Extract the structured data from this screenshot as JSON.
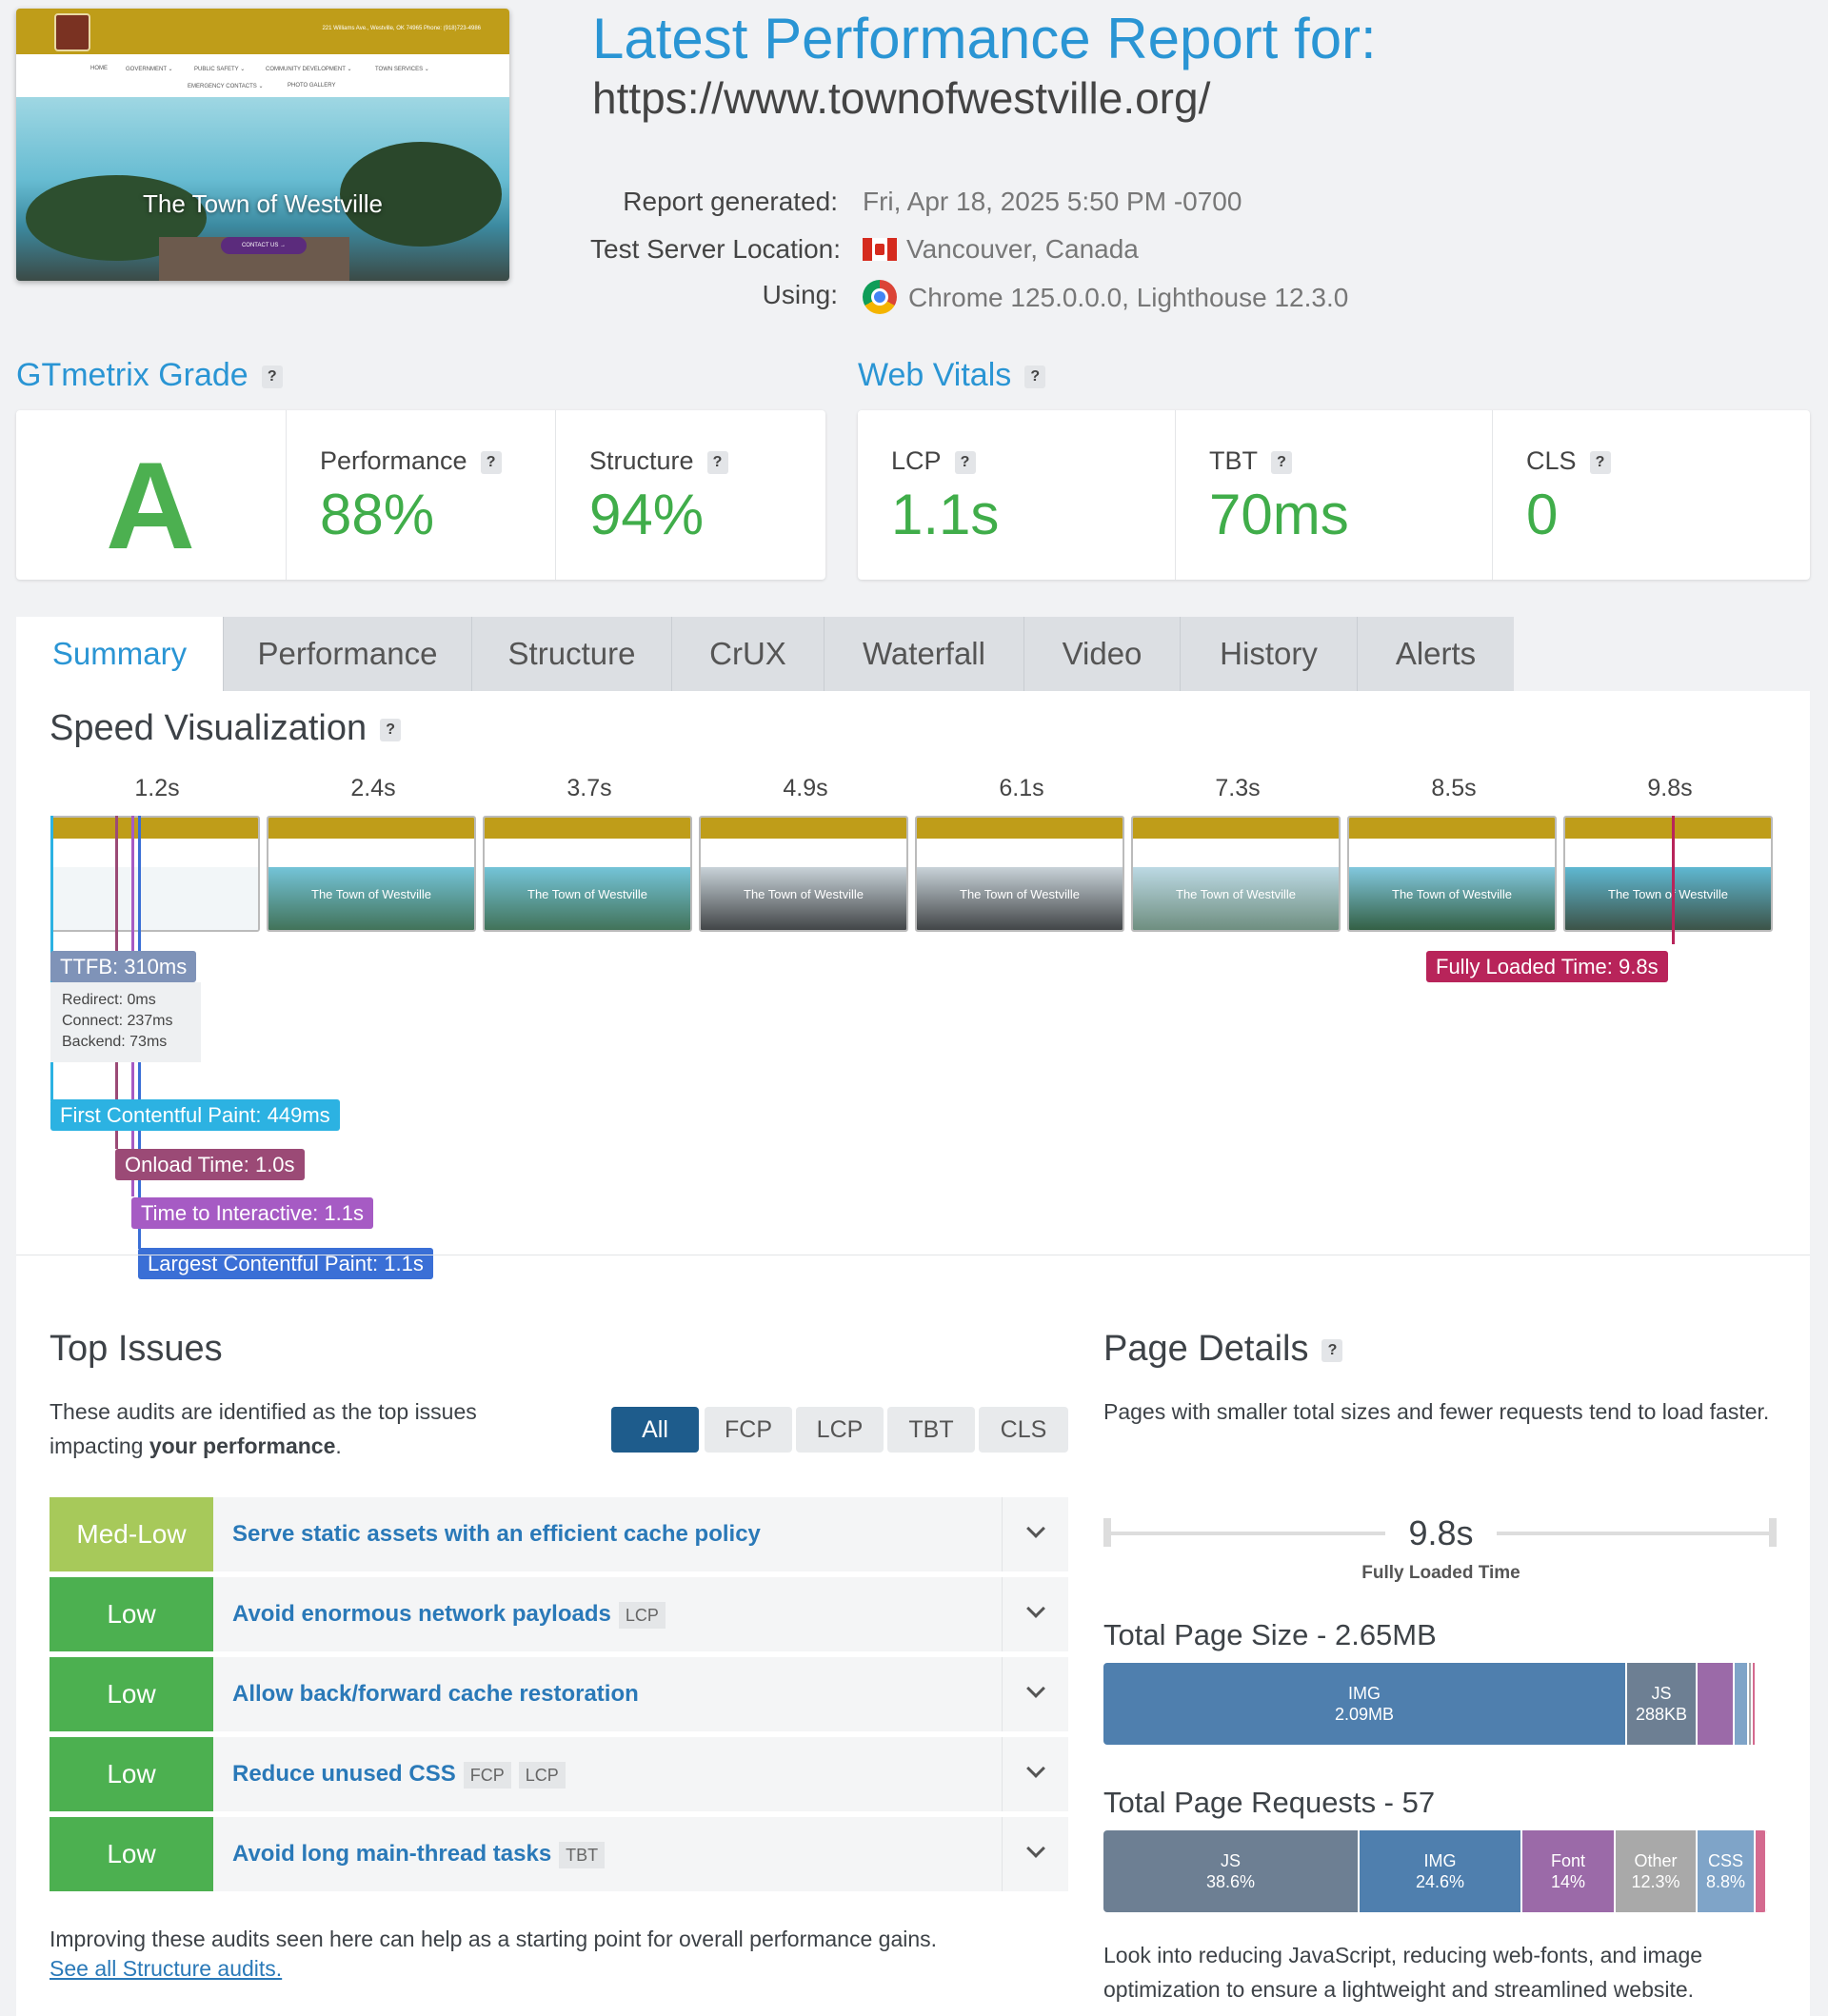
{
  "thumbnail": {
    "logo_text": "WESTVILLE",
    "address": "221 Williams Ave., Westville, OK 74965    Phone: (918)723-4986",
    "nav": [
      "HOME",
      "GOVERNMENT ⌄",
      "PUBLIC SAFETY ⌄",
      "COMMUNITY DEVELOPMENT ⌄",
      "TOWN SERVICES ⌄",
      "EMERGENCY CONTACTS ⌄",
      "PHOTO GALLERY"
    ],
    "hero_title": "The Town of Westville",
    "hero_button": "CONTACT US →"
  },
  "header": {
    "title": "Latest Performance Report for:",
    "url": "https://www.townofwestville.org/",
    "report_generated_label": "Report generated:",
    "report_generated_value": "Fri, Apr 18, 2025 5:50 PM -0700",
    "location_label": "Test Server Location:",
    "location_value": "Vancouver, Canada",
    "using_label": "Using:",
    "using_value": "Chrome 125.0.0.0, Lighthouse 12.3.0",
    "location_icon": "canada-flag-icon",
    "browser_icon": "chrome-icon"
  },
  "grade": {
    "title": "GTmetrix Grade",
    "letter": "A",
    "performance_label": "Performance",
    "performance_value": "88%",
    "structure_label": "Structure",
    "structure_value": "94%"
  },
  "vitals": {
    "title": "Web Vitals",
    "lcp_label": "LCP",
    "lcp_value": "1.1s",
    "tbt_label": "TBT",
    "tbt_value": "70ms",
    "cls_label": "CLS",
    "cls_value": "0"
  },
  "help_mark": "?",
  "tabs": [
    "Summary",
    "Performance",
    "Structure",
    "CrUX",
    "Waterfall",
    "Video",
    "History",
    "Alerts"
  ],
  "speed": {
    "title": "Speed Visualization",
    "ticks": [
      "1.2s",
      "2.4s",
      "3.7s",
      "4.9s",
      "6.1s",
      "7.3s",
      "8.5s",
      "9.8s"
    ],
    "frame_caption": "The Town of Westville",
    "ttfb": "TTFB: 310ms",
    "redirect": "Redirect: 0ms",
    "connect": "Connect: 237ms",
    "backend": "Backend: 73ms",
    "fcp": "First Contentful Paint: 449ms",
    "onload": "Onload Time: 1.0s",
    "tti": "Time to Interactive: 1.1s",
    "lcp": "Largest Contentful Paint: 1.1s",
    "fully_loaded": "Fully Loaded Time: 9.8s",
    "colors": {
      "ttfb": "#7f93b8",
      "fcp": "#2cb2e2",
      "onload": "#9b4a76",
      "tti": "#a65bc4",
      "lcp": "#3a6fd6",
      "fully": "#b8245a"
    }
  },
  "issues": {
    "title": "Top Issues",
    "desc_prefix": "These audits are identified as the top issues impacting ",
    "desc_bold": "your performance",
    "desc_suffix": ".",
    "filters": [
      "All",
      "FCP",
      "LCP",
      "TBT",
      "CLS"
    ],
    "items": [
      {
        "severity": "Med-Low",
        "title": "Serve static assets with an efficient cache policy",
        "tags": []
      },
      {
        "severity": "Low",
        "title": "Avoid enormous network payloads",
        "tags": [
          "LCP"
        ]
      },
      {
        "severity": "Low",
        "title": "Allow back/forward cache restoration",
        "tags": []
      },
      {
        "severity": "Low",
        "title": "Reduce unused CSS",
        "tags": [
          "FCP",
          "LCP"
        ]
      },
      {
        "severity": "Low",
        "title": "Avoid long main-thread tasks",
        "tags": [
          "TBT"
        ]
      }
    ],
    "footer": "Improving these audits seen here can help as a starting point for overall performance gains.",
    "link": "See all Structure audits."
  },
  "details": {
    "title": "Page Details",
    "desc": "Pages with smaller total sizes and fewer requests tend to load faster.",
    "fully_loaded_value": "9.8s",
    "fully_loaded_label": "Fully Loaded Time",
    "size_title": "Total Page Size - 2.65MB",
    "size_segments": [
      {
        "label": "IMG",
        "value": "2.09MB",
        "share": 0.789,
        "color": "#4f7fae"
      },
      {
        "label": "JS",
        "value": "288KB",
        "share": 0.106,
        "color": "#6d7f93"
      },
      {
        "label": "",
        "value": "",
        "share": 0.056,
        "color": "#9b6aa8"
      },
      {
        "label": "",
        "value": "",
        "share": 0.022,
        "color": "#7fa4c8"
      },
      {
        "label": "",
        "value": "",
        "share": 0.006,
        "color": "#a9a9a9"
      },
      {
        "label": "",
        "value": "",
        "share": 0.006,
        "color": "#d46a8f"
      }
    ],
    "requests_title": "Total Page Requests - 57",
    "request_segments": [
      {
        "label": "JS",
        "value": "38.6%",
        "share": 0.386,
        "color": "#6d7f93"
      },
      {
        "label": "IMG",
        "value": "24.6%",
        "share": 0.246,
        "color": "#4f7fae"
      },
      {
        "label": "Font",
        "value": "14%",
        "share": 0.14,
        "color": "#9b6aa8"
      },
      {
        "label": "Other",
        "value": "12.3%",
        "share": 0.123,
        "color": "#a9a9a9"
      },
      {
        "label": "CSS",
        "value": "8.8%",
        "share": 0.088,
        "color": "#7fa4c8"
      },
      {
        "label": "",
        "value": "",
        "share": 0.017,
        "color": "#d46a8f"
      }
    ],
    "footer": "Look into reducing JavaScript, reducing web-fonts, and image optimization to ensure a lightweight and streamlined website."
  },
  "severity_colors": {
    "Med-Low": "#a7c95a",
    "Low": "#4cb050"
  }
}
